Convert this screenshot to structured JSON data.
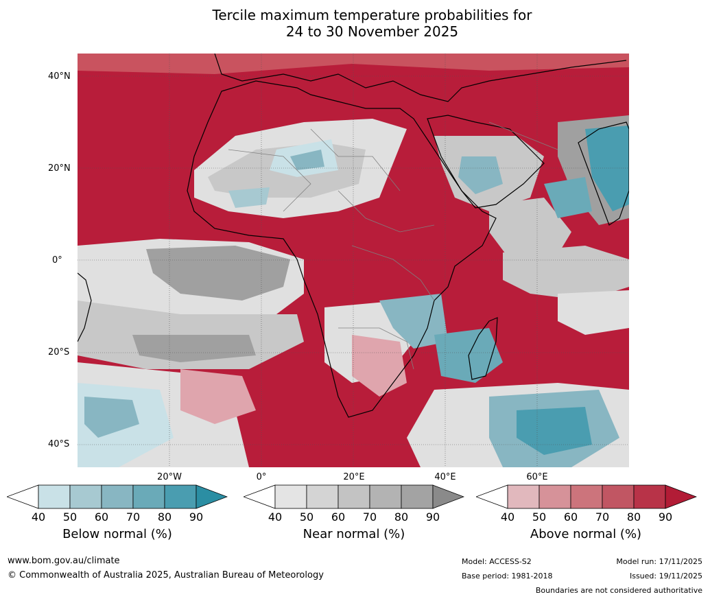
{
  "title_line1": "Tercile maximum temperature probabilities for",
  "title_line2": "24 to 30 November 2025",
  "lat_labels": [
    "40°N",
    "20°N",
    "0°",
    "20°S",
    "40°S"
  ],
  "lon_labels": [
    "20°W",
    "0°",
    "20°E",
    "40°E",
    "60°E"
  ],
  "colorbars": [
    {
      "label": "Below normal (%)",
      "ticks": [
        "40",
        "50",
        "60",
        "70",
        "80",
        "90"
      ],
      "colors": [
        "#ffffff",
        "#c9e1e7",
        "#a7c9d1",
        "#88b6c2",
        "#6aaab8",
        "#4a9db0",
        "#2b8ea3"
      ]
    },
    {
      "label": "Near normal (%)",
      "ticks": [
        "40",
        "50",
        "60",
        "70",
        "80",
        "90"
      ],
      "colors": [
        "#ffffff",
        "#e4e4e4",
        "#d4d4d4",
        "#c3c3c3",
        "#b3b3b3",
        "#a3a3a3",
        "#8a8a8a"
      ]
    },
    {
      "label": "Above normal (%)",
      "ticks": [
        "40",
        "50",
        "60",
        "70",
        "80",
        "90"
      ],
      "colors": [
        "#ffffff",
        "#e1b8bd",
        "#d69299",
        "#cc747c",
        "#c15663",
        "#b83348",
        "#b21c36"
      ]
    }
  ],
  "footer": {
    "website": "www.bom.gov.au/climate",
    "copyright": "© Commonwealth of Australia 2025, Australian Bureau of Meteorology",
    "model": "Model: ACCESS-S2",
    "base_period": "Base period: 1981-2018",
    "model_run": "Model run: 17/11/2025",
    "issued": "Issued: 19/11/2025",
    "disclaimer": "Boundaries are not considered authoritative"
  },
  "map_colors": {
    "above": "#b81d3a",
    "above_mid": "#c9535f",
    "above_light": "#dfa5ad",
    "near_light": "#e0e0e0",
    "near_mid": "#c8c8c8",
    "near_dark": "#a0a0a0",
    "below_light": "#c9e1e7",
    "below_mid": "#88b6c2",
    "below_dark": "#2b8ea3",
    "coast": "#000000",
    "border": "#808080"
  }
}
